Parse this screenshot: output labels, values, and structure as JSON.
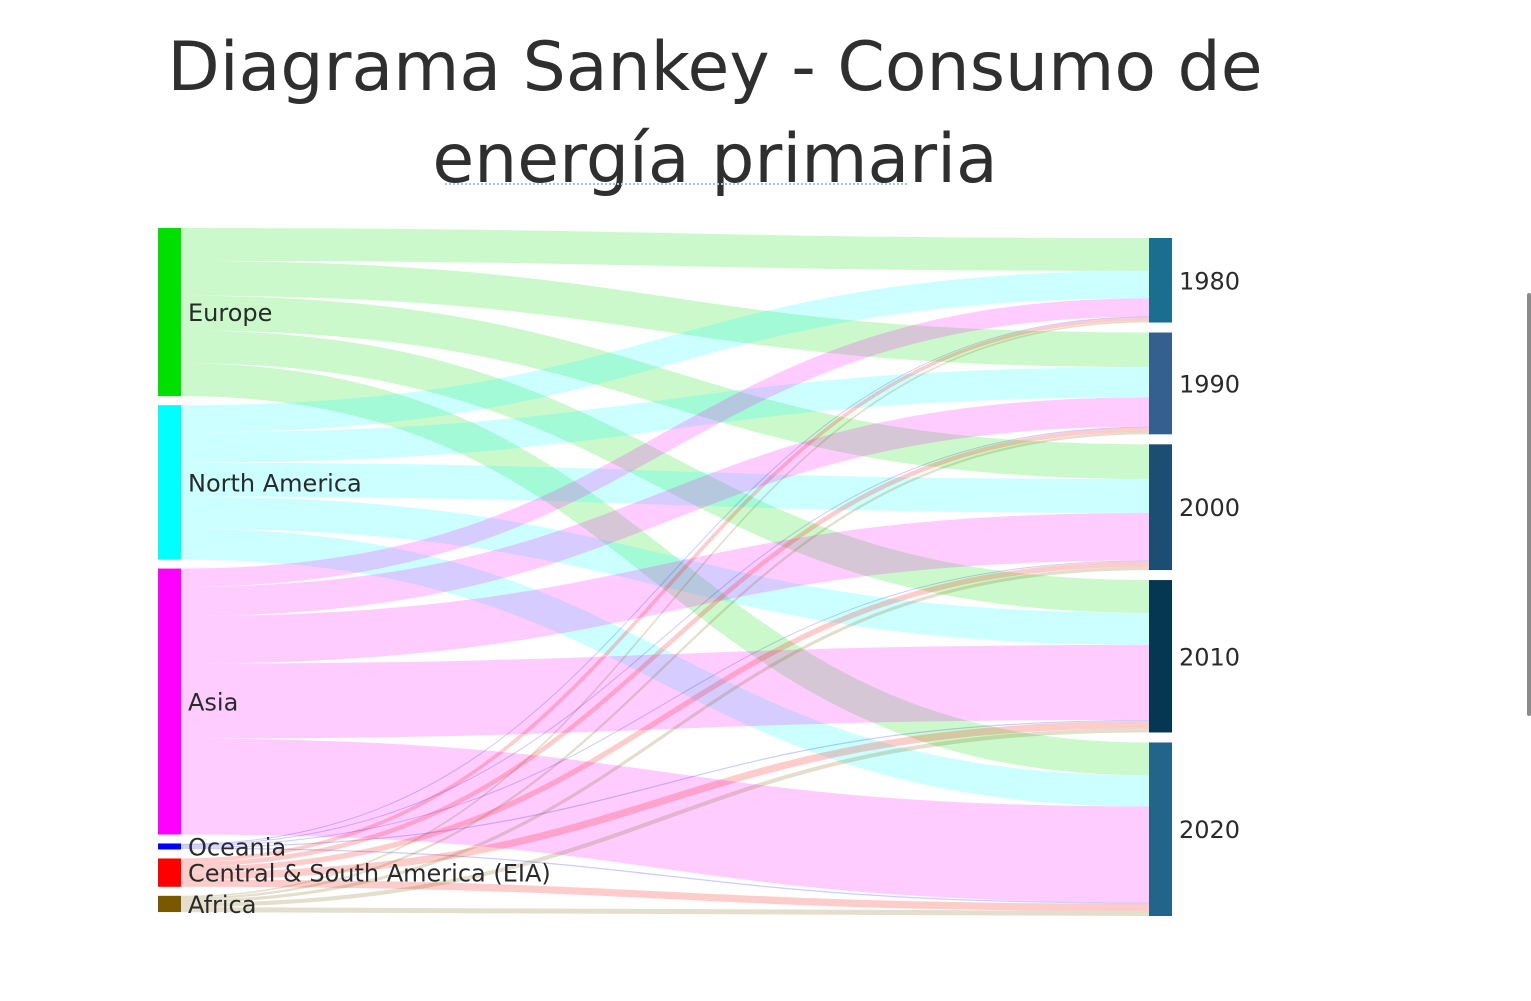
{
  "title": "Diagrama Sankey - Consumo de energía primaria",
  "chart_data": {
    "type": "sankey",
    "title": "Diagrama Sankey - Consumo de energía primaria",
    "sources": [
      {
        "name": "Europe",
        "color": "#00e000",
        "values": [
          36,
          38,
          38,
          36,
          36
        ]
      },
      {
        "name": "North America",
        "color": "#00ffff",
        "values": [
          30,
          33,
          37,
          35,
          34
        ]
      },
      {
        "name": "Asia",
        "color": "#ff00ff",
        "values": [
          20,
          32,
          52,
          82,
          105
        ]
      },
      {
        "name": "Oceania",
        "color": "#0000ff",
        "values": [
          0.7,
          0.9,
          1.1,
          1.3,
          1.4
        ]
      },
      {
        "name": "Central & South America (EIA)",
        "color": "#ff0000",
        "values": [
          4,
          5,
          6,
          8,
          8
        ]
      },
      {
        "name": "Africa",
        "color": "#7a5800",
        "values": [
          1.8,
          2.5,
          3.5,
          4.5,
          5.5
        ]
      }
    ],
    "targets": [
      {
        "name": "1980",
        "color": "#1b6e8f"
      },
      {
        "name": "1990",
        "color": "#33608f"
      },
      {
        "name": "2000",
        "color": "#1c4d72"
      },
      {
        "name": "2010",
        "color": "#053752"
      },
      {
        "name": "2020",
        "color": "#22648a"
      }
    ]
  }
}
